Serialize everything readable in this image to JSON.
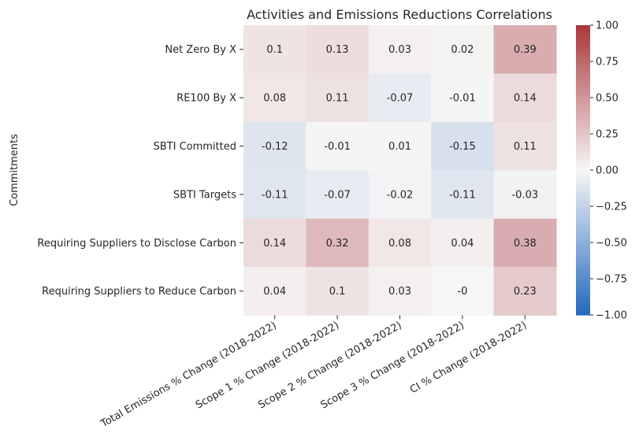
{
  "chart_data": {
    "type": "heatmap",
    "title": "Activities and Emissions Reductions Correlations",
    "xlabel": "",
    "ylabel": "Commitments",
    "x_categories": [
      "Total Emissions % Change (2018-2022)",
      "Scope 1 % Change (2018-2022)",
      "Scope 2 % Change (2018-2022)",
      "Scope 3 % Change (2018-2022)",
      "CI % Change (2018-2022)"
    ],
    "y_categories": [
      "Net Zero By X",
      "RE100 By X",
      "SBTI Committed",
      "SBTI Targets",
      "Requiring Suppliers to Disclose Carbon",
      "Requiring Suppliers to Reduce Carbon"
    ],
    "values": [
      [
        0.1,
        0.13,
        0.03,
        0.02,
        0.39
      ],
      [
        0.08,
        0.11,
        -0.07,
        -0.01,
        0.14
      ],
      [
        -0.12,
        -0.01,
        0.01,
        -0.15,
        0.11
      ],
      [
        -0.11,
        -0.07,
        -0.02,
        -0.11,
        -0.03
      ],
      [
        0.14,
        0.32,
        0.08,
        0.04,
        0.38
      ],
      [
        0.04,
        0.1,
        0.03,
        0,
        0.23
      ]
    ],
    "cell_labels": [
      [
        "0.1",
        "0.13",
        "0.03",
        "0.02",
        "0.39"
      ],
      [
        "0.08",
        "0.11",
        "-0.07",
        "-0.01",
        "0.14"
      ],
      [
        "-0.12",
        "-0.01",
        "0.01",
        "-0.15",
        "0.11"
      ],
      [
        "-0.11",
        "-0.07",
        "-0.02",
        "-0.11",
        "-0.03"
      ],
      [
        "0.14",
        "0.32",
        "0.08",
        "0.04",
        "0.38"
      ],
      [
        "0.04",
        "0.1",
        "0.03",
        "-0",
        "0.23"
      ]
    ],
    "colorbar": {
      "vmin": -1.0,
      "vmax": 1.0,
      "ticks": [
        1.0,
        0.75,
        0.5,
        0.25,
        0.0,
        -0.25,
        -0.5,
        -0.75,
        -1.0
      ],
      "tick_labels": [
        "1.00",
        "0.75",
        "0.50",
        "0.25",
        "0.00",
        "−0.25",
        "−0.50",
        "−0.75",
        "−1.00"
      ],
      "colormap": "vlag",
      "color_low": "#2369bd",
      "color_mid": "#f7f6f6",
      "color_high": "#a9373b"
    },
    "grid": false,
    "legend": "colorbar-right"
  }
}
